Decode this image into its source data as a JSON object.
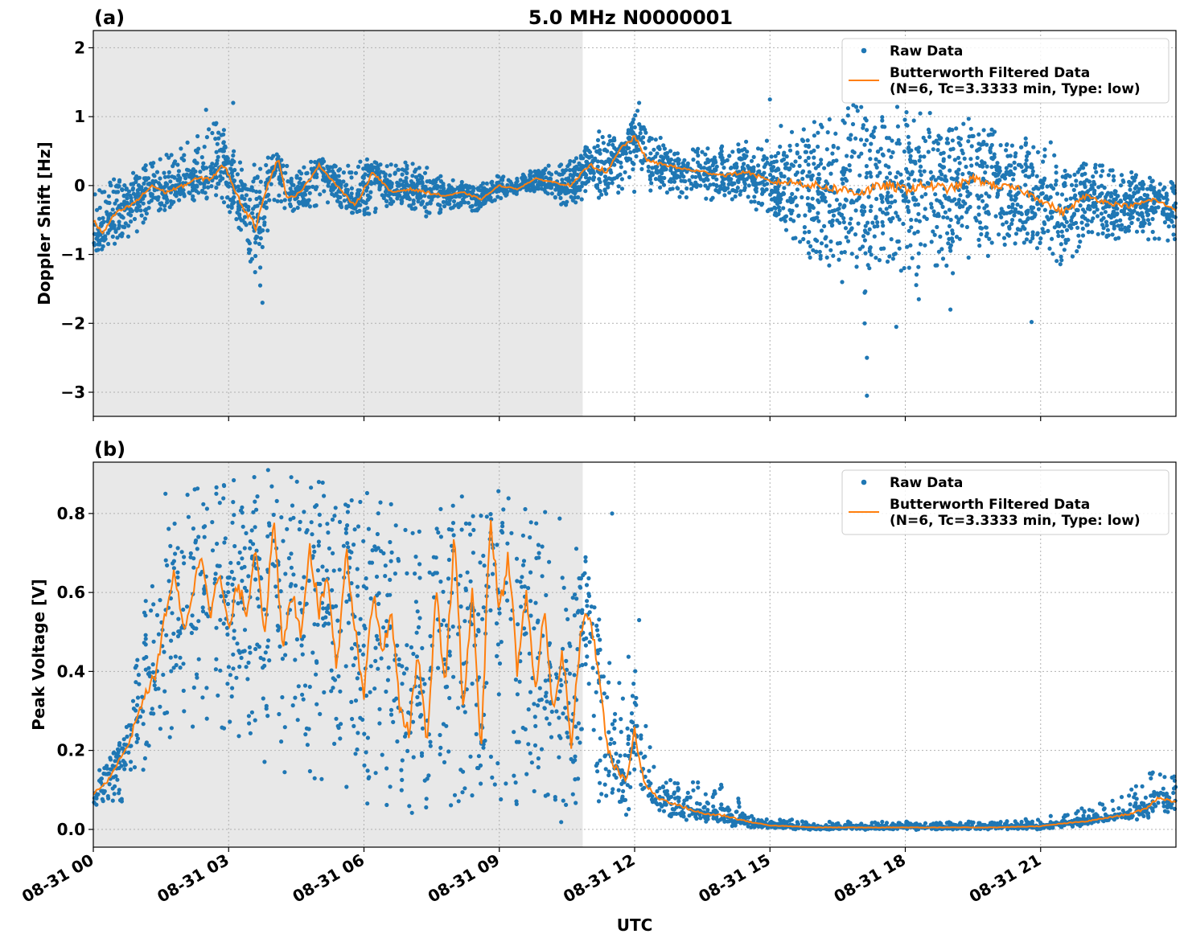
{
  "figure": {
    "title": "5.0 MHz N0000001",
    "xlabel": "UTC",
    "x_tick_labels": [
      "08-31 00",
      "08-31 03",
      "08-31 06",
      "08-31 09",
      "08-31 12",
      "08-31 15",
      "08-31 18",
      "08-31 21"
    ]
  },
  "colors": {
    "raw": "#1f77b4",
    "filtered": "#ff7f0e",
    "night_shade": "#e8e8e8"
  },
  "chart_data": [
    {
      "type": "scatter",
      "panel_label": "(a)",
      "title": "5.0 MHz N0000001",
      "ylabel": "Doppler Shift [Hz]",
      "xlabel": "UTC",
      "x_unit": "hours UTC on 08-31",
      "xlim": [
        0,
        24
      ],
      "ylim": [
        -3.35,
        2.25
      ],
      "y_ticks": [
        2,
        1,
        0,
        -1,
        -2,
        -3
      ],
      "y_tick_labels": [
        "2",
        "1",
        "0",
        "−1",
        "−2",
        "−3"
      ],
      "shaded_span": [
        0,
        10.85
      ],
      "grid": true,
      "legend_position": "top-right",
      "series": [
        {
          "name": "Raw Data",
          "style": "points",
          "x": [
            0,
            0.5,
            1,
            1.5,
            2,
            2.5,
            2.8,
            3,
            3.3,
            3.6,
            4.1,
            4.5,
            5,
            5.5,
            6,
            6.5,
            7,
            7.5,
            8,
            8.5,
            9,
            9.5,
            10,
            10.5,
            11,
            11.3,
            11.7,
            12,
            12.3,
            12.7,
            13,
            13.5,
            14,
            14.5,
            15,
            15.5,
            16,
            16.5,
            17,
            17.5,
            18,
            18.5,
            19,
            19.5,
            20,
            20.5,
            21,
            21.5,
            22,
            22.5,
            23,
            23.5,
            24
          ],
          "lower": [
            -1.1,
            -0.8,
            -0.6,
            -0.4,
            -0.2,
            -0.2,
            -0.1,
            -0.4,
            -0.7,
            -1.5,
            -0.3,
            -0.4,
            -0.3,
            -0.3,
            -0.5,
            -0.3,
            -0.3,
            -0.5,
            -0.3,
            -0.4,
            -0.2,
            -0.1,
            -0.1,
            -0.3,
            -0.2,
            -0.2,
            -0.1,
            -0.1,
            -0.1,
            -0.1,
            -0.2,
            -0.2,
            -0.2,
            -0.2,
            -0.5,
            -0.8,
            -1.0,
            -1.2,
            -1.4,
            -1.2,
            -1.3,
            -1.2,
            -1.3,
            -1.1,
            -1.0,
            -1.0,
            -0.9,
            -1.2,
            -0.8,
            -0.8,
            -0.8,
            -0.8,
            -0.9
          ],
          "upper": [
            0.05,
            0.1,
            0.25,
            0.4,
            0.6,
            0.8,
            1.0,
            0.6,
            0.3,
            0.2,
            0.5,
            0.3,
            0.4,
            0.3,
            0.4,
            0.3,
            0.35,
            0.2,
            0.1,
            0.0,
            0.15,
            0.2,
            0.25,
            0.35,
            0.7,
            0.9,
            0.6,
            1.1,
            0.85,
            0.6,
            0.5,
            0.55,
            0.6,
            0.6,
            0.7,
            0.8,
            1.0,
            1.1,
            1.2,
            1.1,
            1.1,
            1.2,
            1.0,
            1.0,
            0.8,
            0.7,
            0.8,
            0.5,
            0.35,
            0.3,
            0.2,
            0.1,
            0.05
          ],
          "outliers": [
            [
              2.5,
              1.1
            ],
            [
              3.1,
              1.2
            ],
            [
              3.7,
              -1.45
            ],
            [
              3.75,
              -1.7
            ],
            [
              16.6,
              -1.4
            ],
            [
              17.1,
              -2.0
            ],
            [
              17.15,
              -2.5
            ],
            [
              17.15,
              -3.05
            ],
            [
              17.8,
              -2.05
            ],
            [
              18.3,
              -1.65
            ],
            [
              19.0,
              -1.8
            ],
            [
              20.8,
              -1.98
            ],
            [
              15.0,
              1.25
            ],
            [
              12.1,
              1.2
            ]
          ]
        },
        {
          "name": "Butterworth Filtered Data\n(N=6, Tc=3.3333 min, Type: low)",
          "style": "line",
          "x": [
            0,
            0.2,
            0.5,
            0.8,
            1.0,
            1.3,
            1.6,
            2.0,
            2.3,
            2.6,
            2.9,
            3.1,
            3.3,
            3.6,
            3.8,
            4.1,
            4.3,
            4.6,
            5.0,
            5.4,
            5.8,
            6.2,
            6.6,
            7.0,
            7.4,
            7.8,
            8.2,
            8.6,
            9.0,
            9.4,
            9.8,
            10.2,
            10.6,
            11.0,
            11.4,
            11.7,
            12.0,
            12.3,
            12.7,
            13.0,
            13.5,
            14.0,
            14.5,
            15.0,
            15.5,
            16.0,
            16.5,
            17.0,
            17.5,
            18.0,
            18.5,
            19.0,
            19.5,
            20.0,
            20.5,
            21.0,
            21.5,
            22.0,
            22.5,
            23.0,
            23.5,
            24.0
          ],
          "y": [
            -0.5,
            -0.7,
            -0.4,
            -0.3,
            -0.2,
            0.0,
            -0.1,
            0.0,
            0.1,
            0.1,
            0.3,
            0.0,
            -0.3,
            -0.6,
            -0.1,
            0.4,
            -0.2,
            -0.1,
            0.3,
            0.0,
            -0.3,
            0.2,
            -0.1,
            -0.05,
            -0.1,
            -0.15,
            -0.1,
            -0.2,
            0.0,
            -0.05,
            0.1,
            0.05,
            0.0,
            0.3,
            0.2,
            0.55,
            0.7,
            0.35,
            0.3,
            0.25,
            0.2,
            0.15,
            0.2,
            0.05,
            0.05,
            0.0,
            -0.05,
            -0.1,
            0.0,
            -0.05,
            0.0,
            -0.05,
            0.1,
            0.0,
            -0.05,
            -0.2,
            -0.4,
            -0.15,
            -0.25,
            -0.3,
            -0.2,
            -0.35
          ]
        }
      ]
    },
    {
      "type": "scatter",
      "panel_label": "(b)",
      "ylabel": "Peak Voltage [V]",
      "xlabel": "UTC",
      "x_unit": "hours UTC on 08-31",
      "xlim": [
        0,
        24
      ],
      "ylim": [
        -0.045,
        0.93
      ],
      "y_ticks": [
        0.8,
        0.6,
        0.4,
        0.2,
        0.0
      ],
      "y_tick_labels": [
        "0.8",
        "0.6",
        "0.4",
        "0.2",
        "0.0"
      ],
      "shaded_span": [
        0,
        10.85
      ],
      "grid": true,
      "legend_position": "top-right",
      "series": [
        {
          "name": "Raw Data",
          "style": "points",
          "x": [
            0,
            0.5,
            0.8,
            1.0,
            1.3,
            1.6,
            2.0,
            2.5,
            3.0,
            3.5,
            4.0,
            4.5,
            5.0,
            5.5,
            6.0,
            6.5,
            7.0,
            7.5,
            8.0,
            8.5,
            9.0,
            9.5,
            10.0,
            10.5,
            10.8,
            11.0,
            11.3,
            11.6,
            12.0,
            12.3,
            12.6,
            13.0,
            13.5,
            14.0,
            14.5,
            15.0,
            16,
            17,
            18,
            19,
            20,
            21,
            21.5,
            22,
            22.5,
            23,
            23.5,
            24
          ],
          "lower": [
            0.05,
            0.06,
            0.08,
            0.12,
            0.18,
            0.22,
            0.25,
            0.27,
            0.25,
            0.2,
            0.15,
            0.12,
            0.1,
            0.08,
            0.1,
            0.06,
            0.05,
            0.05,
            0.06,
            0.05,
            0.05,
            0.06,
            0.05,
            0.05,
            0.05,
            0.06,
            0.06,
            0.05,
            0.05,
            0.04,
            0.03,
            0.02,
            0.02,
            0.01,
            0.005,
            0.002,
            0.0,
            0.0,
            0.0,
            0.0,
            0.0,
            0.0,
            0.005,
            0.01,
            0.02,
            0.02,
            0.03,
            0.04
          ],
          "upper": [
            0.15,
            0.2,
            0.3,
            0.5,
            0.65,
            0.8,
            0.85,
            0.88,
            0.87,
            0.87,
            0.88,
            0.88,
            0.88,
            0.87,
            0.86,
            0.85,
            0.75,
            0.82,
            0.88,
            0.86,
            0.89,
            0.86,
            0.85,
            0.83,
            0.8,
            0.7,
            0.5,
            0.4,
            0.5,
            0.25,
            0.15,
            0.12,
            0.12,
            0.12,
            0.05,
            0.03,
            0.02,
            0.02,
            0.02,
            0.02,
            0.02,
            0.03,
            0.04,
            0.06,
            0.07,
            0.1,
            0.15,
            0.14
          ],
          "outliers": [
            [
              1.6,
              0.85
            ],
            [
              2.9,
              0.87
            ],
            [
              5.0,
              0.88
            ],
            [
              11.5,
              0.8
            ],
            [
              12.1,
              0.53
            ]
          ]
        },
        {
          "name": "Butterworth Filtered Data\n(N=6, Tc=3.3333 min, Type: low)",
          "style": "line",
          "x": [
            0,
            0.3,
            0.6,
            0.8,
            1.0,
            1.2,
            1.4,
            1.6,
            1.8,
            2.0,
            2.2,
            2.4,
            2.6,
            2.8,
            3.0,
            3.2,
            3.4,
            3.6,
            3.8,
            4.0,
            4.2,
            4.4,
            4.6,
            4.8,
            5.0,
            5.2,
            5.4,
            5.6,
            5.8,
            6.0,
            6.2,
            6.4,
            6.6,
            6.8,
            7.0,
            7.2,
            7.4,
            7.6,
            7.8,
            8.0,
            8.2,
            8.4,
            8.6,
            8.8,
            9.0,
            9.2,
            9.4,
            9.6,
            9.8,
            10.0,
            10.2,
            10.4,
            10.6,
            10.8,
            11.0,
            11.2,
            11.4,
            11.6,
            11.8,
            12.0,
            12.2,
            12.5,
            13.0,
            13.5,
            14.0,
            14.5,
            15.0,
            16.0,
            17.0,
            18.0,
            19.0,
            20.0,
            21.0,
            21.5,
            22.0,
            22.5,
            23.0,
            23.3,
            23.6,
            24.0
          ],
          "y": [
            0.09,
            0.12,
            0.18,
            0.22,
            0.3,
            0.35,
            0.4,
            0.55,
            0.65,
            0.5,
            0.6,
            0.7,
            0.55,
            0.65,
            0.5,
            0.62,
            0.55,
            0.72,
            0.5,
            0.78,
            0.45,
            0.6,
            0.5,
            0.72,
            0.55,
            0.65,
            0.4,
            0.72,
            0.5,
            0.35,
            0.6,
            0.45,
            0.55,
            0.3,
            0.25,
            0.45,
            0.2,
            0.6,
            0.35,
            0.75,
            0.3,
            0.6,
            0.2,
            0.8,
            0.55,
            0.7,
            0.4,
            0.6,
            0.35,
            0.55,
            0.3,
            0.45,
            0.2,
            0.5,
            0.55,
            0.4,
            0.2,
            0.15,
            0.12,
            0.25,
            0.12,
            0.08,
            0.06,
            0.04,
            0.035,
            0.02,
            0.01,
            0.005,
            0.005,
            0.005,
            0.005,
            0.005,
            0.008,
            0.015,
            0.02,
            0.03,
            0.04,
            0.05,
            0.08,
            0.07
          ]
        }
      ]
    }
  ]
}
